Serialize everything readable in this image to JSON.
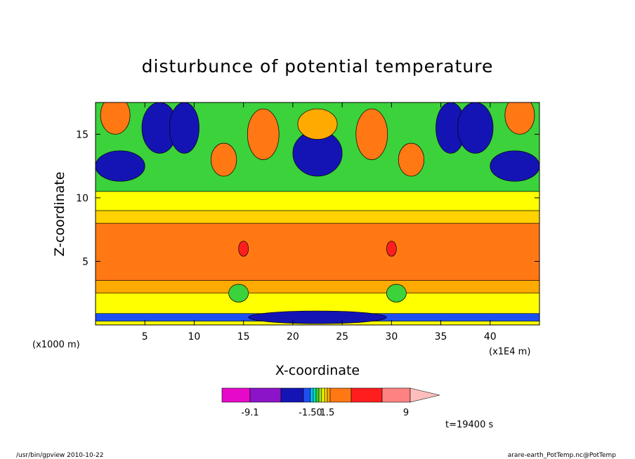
{
  "chart_data": {
    "type": "heatmap",
    "title": "disturbunce of potential temperature",
    "xlabel": "X-coordinate",
    "ylabel": "Z-coordinate",
    "x_scale_note": "(x1E4 m)",
    "z_scale_note": "(x1000 m)",
    "xlim": [
      0,
      45
    ],
    "ylim": [
      0,
      17.5
    ],
    "x_ticks": [
      5,
      10,
      15,
      20,
      25,
      30,
      35,
      40
    ],
    "y_ticks": [
      5,
      10,
      15
    ],
    "colorbar": {
      "tick_labels": [
        "-9.1",
        "-1.50",
        "1.5",
        "9"
      ],
      "levels": [
        {
          "color": "#e60ac8"
        },
        {
          "color": "#8c14c8"
        },
        {
          "color": "#1414b4"
        },
        {
          "color": "#1e50f0"
        },
        {
          "color": "#00c8ff"
        },
        {
          "color": "#00e6b4"
        },
        {
          "color": "#3cd23c"
        },
        {
          "color": "#a0e61e"
        },
        {
          "color": "#ffff00"
        },
        {
          "color": "#ffd200"
        },
        {
          "color": "#ffaa00"
        },
        {
          "color": "#ff7814"
        },
        {
          "color": "#ff1e1e"
        },
        {
          "color": "#ff8282"
        },
        {
          "color": "#ffbebe"
        }
      ]
    },
    "bands": [
      {
        "z": [
          0.3,
          0.9
        ],
        "level": 3
      },
      {
        "z": [
          0.9,
          2.5
        ],
        "level": 8
      },
      {
        "z": [
          2.5,
          3.5
        ],
        "level": 10
      },
      {
        "z": [
          3.5,
          8.0
        ],
        "level": 11
      },
      {
        "z": [
          8.0,
          9.0
        ],
        "level": 9
      },
      {
        "z": [
          9.0,
          10.5
        ],
        "level": 8
      },
      {
        "z": [
          10.5,
          17.5
        ],
        "level": 6
      }
    ],
    "cells": [
      {
        "x": 2.0,
        "z": 16.5,
        "rx": 1.5,
        "rz": 1.5,
        "level": 11
      },
      {
        "x": 2.5,
        "z": 12.5,
        "rx": 2.5,
        "rz": 1.2,
        "level": 2
      },
      {
        "x": 6.5,
        "z": 15.5,
        "rx": 1.8,
        "rz": 2.0,
        "level": 2
      },
      {
        "x": 9.0,
        "z": 15.5,
        "rx": 1.5,
        "rz": 2.0,
        "level": 2
      },
      {
        "x": 13.0,
        "z": 13.0,
        "rx": 1.3,
        "rz": 1.3,
        "level": 11
      },
      {
        "x": 17.0,
        "z": 15.0,
        "rx": 1.6,
        "rz": 2.0,
        "level": 11
      },
      {
        "x": 22.5,
        "z": 13.5,
        "rx": 2.5,
        "rz": 1.8,
        "level": 2
      },
      {
        "x": 22.5,
        "z": 15.8,
        "rx": 2.0,
        "rz": 1.2,
        "level": 10
      },
      {
        "x": 28.0,
        "z": 15.0,
        "rx": 1.6,
        "rz": 2.0,
        "level": 11
      },
      {
        "x": 32.0,
        "z": 13.0,
        "rx": 1.3,
        "rz": 1.3,
        "level": 11
      },
      {
        "x": 36.0,
        "z": 15.5,
        "rx": 1.5,
        "rz": 2.0,
        "level": 2
      },
      {
        "x": 38.5,
        "z": 15.5,
        "rx": 1.8,
        "rz": 2.0,
        "level": 2
      },
      {
        "x": 42.5,
        "z": 12.5,
        "rx": 2.5,
        "rz": 1.2,
        "level": 2
      },
      {
        "x": 43.0,
        "z": 16.5,
        "rx": 1.5,
        "rz": 1.5,
        "level": 11
      },
      {
        "x": 14.5,
        "z": 2.5,
        "rx": 1.0,
        "rz": 0.7,
        "level": 6
      },
      {
        "x": 30.5,
        "z": 2.5,
        "rx": 1.0,
        "rz": 0.7,
        "level": 6
      },
      {
        "x": 15.0,
        "z": 6.0,
        "rx": 0.5,
        "rz": 0.6,
        "level": 12
      },
      {
        "x": 30.0,
        "z": 6.0,
        "rx": 0.5,
        "rz": 0.6,
        "level": 12
      },
      {
        "x": 22.5,
        "z": 0.6,
        "rx": 7.0,
        "rz": 0.5,
        "level": 2
      }
    ]
  },
  "footer": {
    "left": "/usr/bin/gpview   2010-10-22",
    "right": "arare-earth_PotTemp.nc@PotTemp"
  },
  "time_label": "t=19400 s"
}
